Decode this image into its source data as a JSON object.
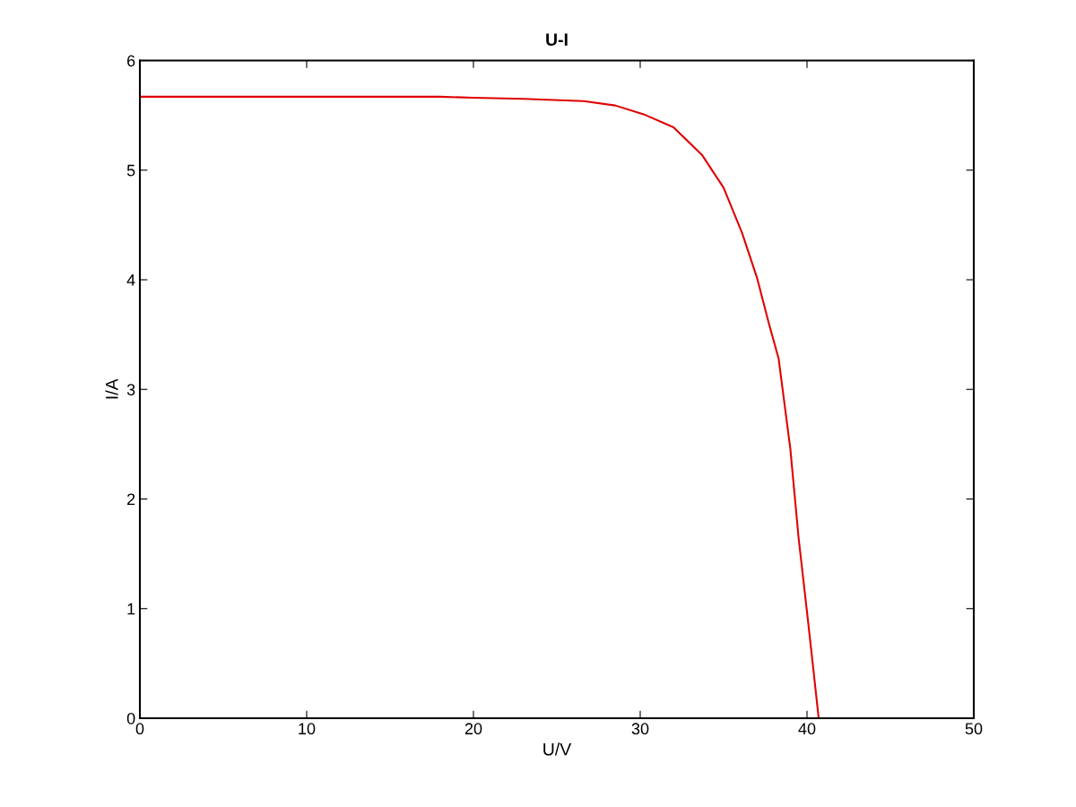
{
  "chart_data": {
    "type": "line",
    "title": "U-I",
    "xlabel": "U/V",
    "ylabel": "I/A",
    "series": [
      {
        "color": "#e00000",
        "x": [
          0,
          5,
          10,
          15,
          18,
          20,
          23,
          26.6,
          28.5,
          30.2,
          32.0,
          33.7,
          35.0,
          36.1,
          37.0,
          37.7,
          38.3,
          39.0,
          39.5,
          40.0,
          40.4,
          40.7
        ],
        "values": [
          5.67,
          5.67,
          5.67,
          5.67,
          5.67,
          5.66,
          5.65,
          5.63,
          5.59,
          5.51,
          5.39,
          5.14,
          4.84,
          4.43,
          4.02,
          3.61,
          3.28,
          2.46,
          1.64,
          0.97,
          0.42,
          0
        ]
      }
    ],
    "xlim": [
      0,
      50
    ],
    "ylim": [
      0,
      6
    ],
    "xticks": [
      0,
      10,
      20,
      30,
      40,
      50
    ],
    "yticks": [
      0,
      1,
      2,
      3,
      4,
      5,
      6
    ],
    "grid": false,
    "legend": false
  }
}
